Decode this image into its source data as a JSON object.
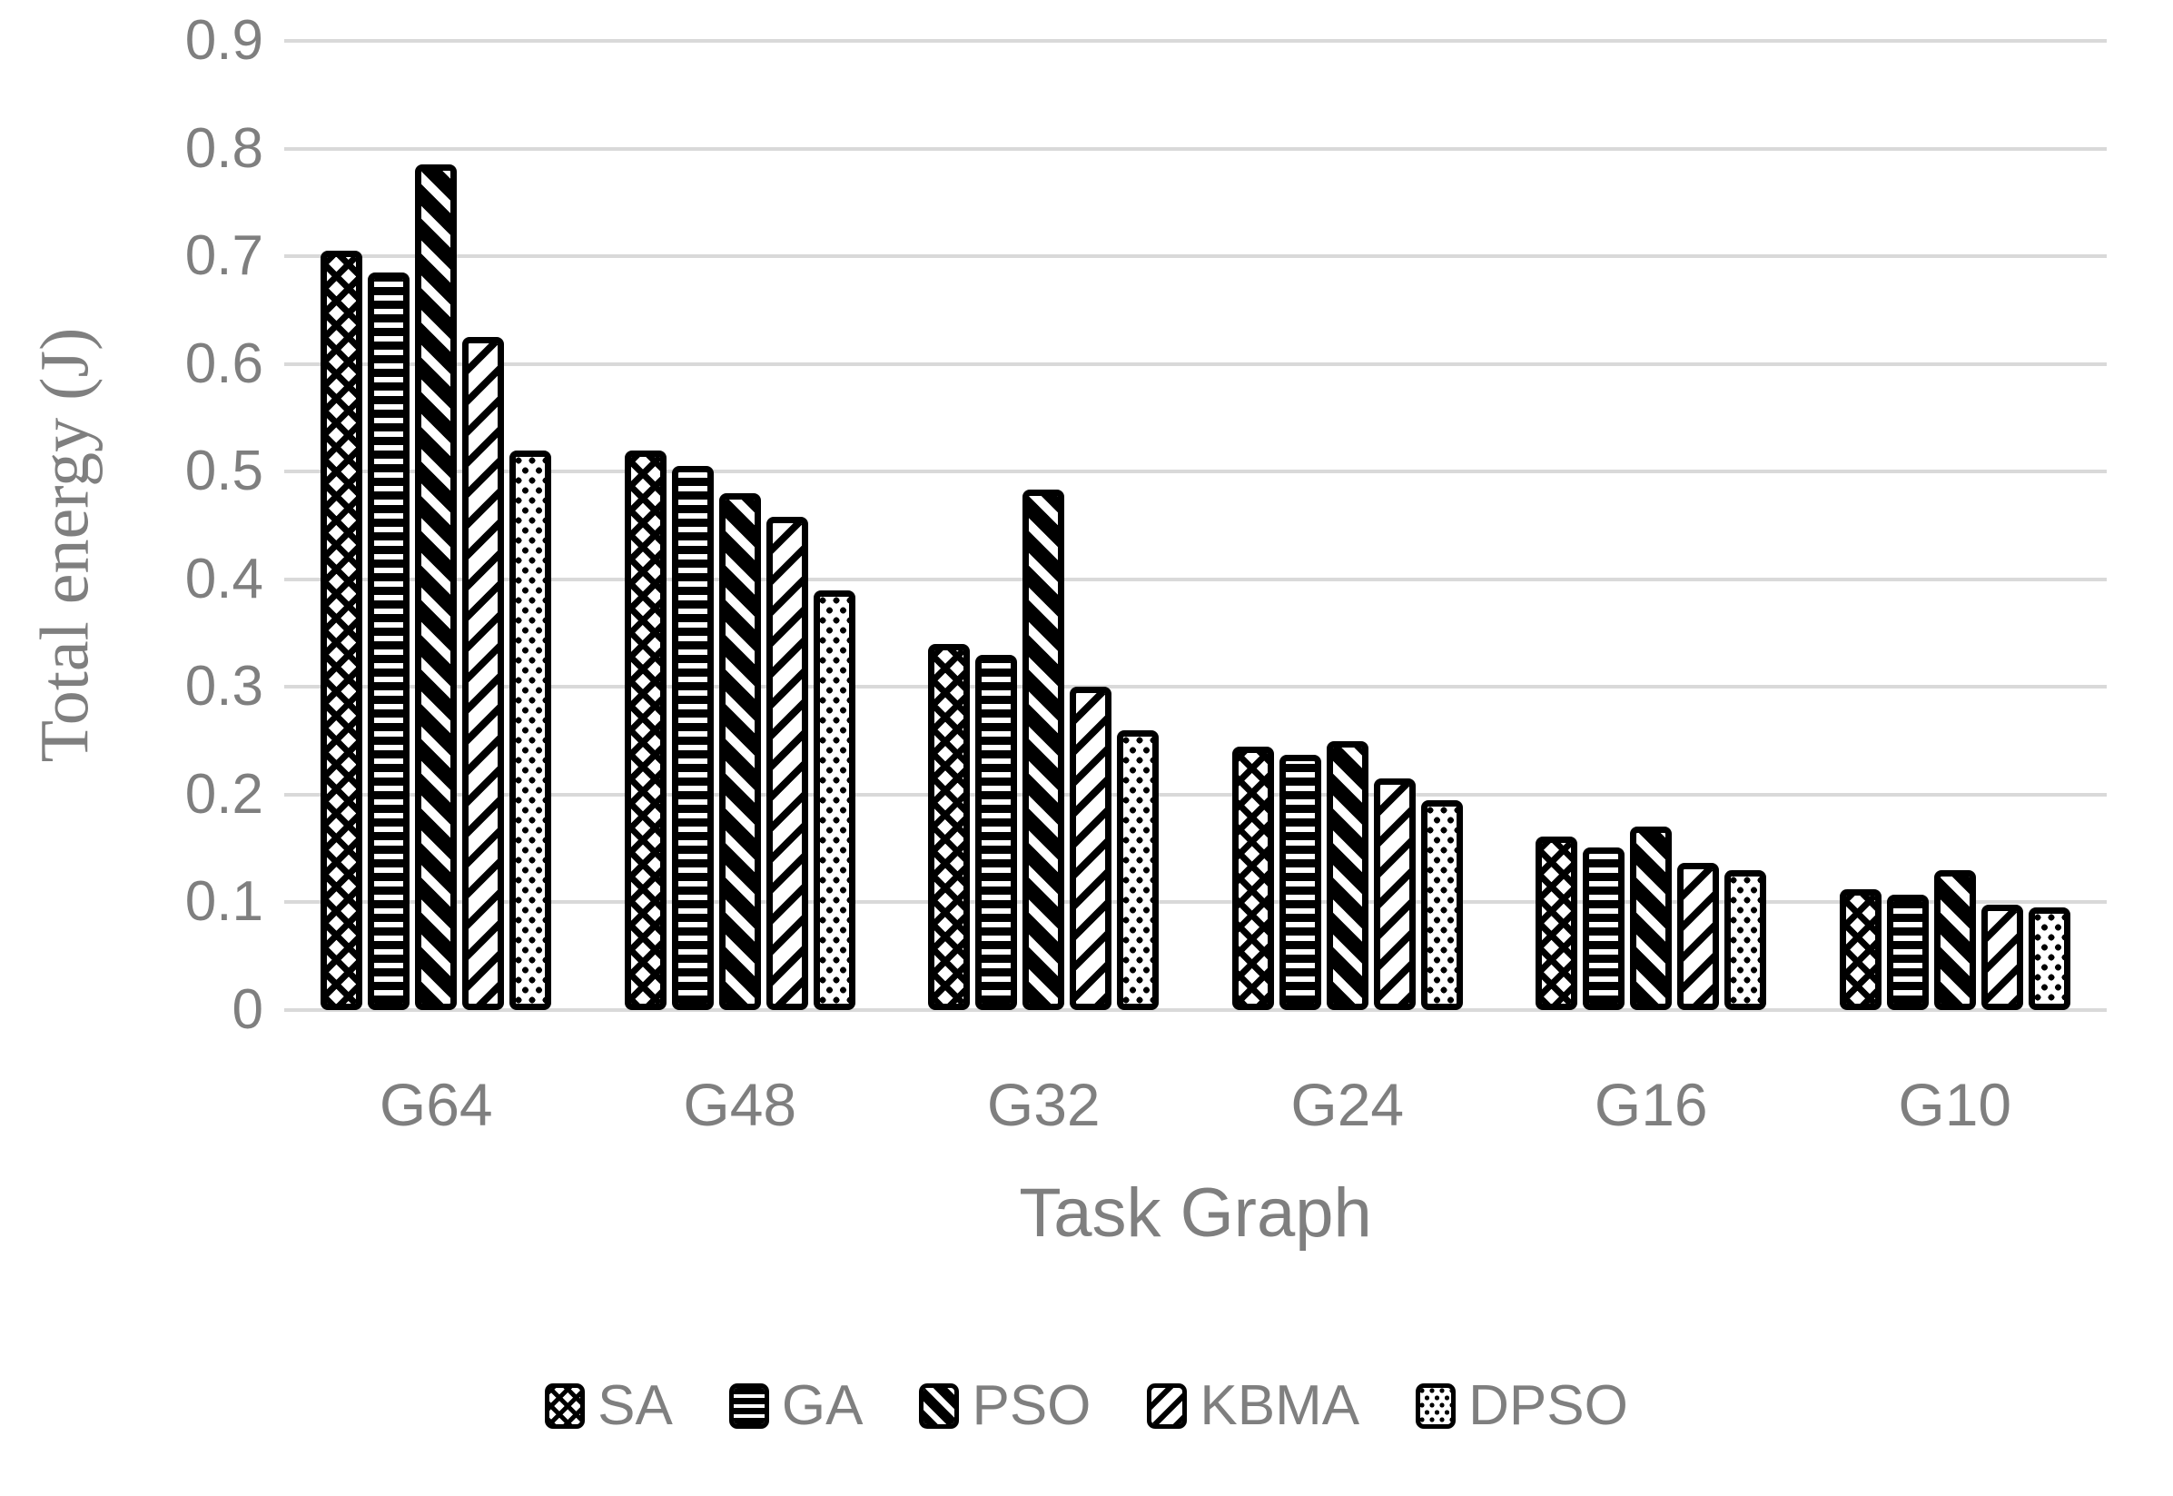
{
  "chart_data": {
    "type": "bar",
    "title": "",
    "categories": [
      "G64",
      "G48",
      "G32",
      "G24",
      "G16",
      "G10"
    ],
    "series": [
      {
        "name": "SA",
        "values": [
          0.705,
          0.52,
          0.34,
          0.245,
          0.161,
          0.112
        ]
      },
      {
        "name": "GA",
        "values": [
          0.685,
          0.505,
          0.33,
          0.237,
          0.151,
          0.107
        ]
      },
      {
        "name": "PSO",
        "values": [
          0.785,
          0.48,
          0.483,
          0.25,
          0.17,
          0.13
        ]
      },
      {
        "name": "KBMA",
        "values": [
          0.625,
          0.458,
          0.3,
          0.215,
          0.137,
          0.098
        ]
      },
      {
        "name": "DPSO",
        "values": [
          0.52,
          0.39,
          0.26,
          0.195,
          0.13,
          0.095
        ]
      }
    ],
    "xlabel": "Task Graph",
    "ylabel": "Total energy (J)",
    "ylim": [
      0,
      0.9
    ],
    "ytick_step": 0.1,
    "yticks": [
      "0",
      "0.1",
      "0.2",
      "0.3",
      "0.4",
      "0.5",
      "0.6",
      "0.7",
      "0.8",
      "0.9"
    ],
    "grid": true,
    "legend_position": "bottom",
    "patterns": {
      "SA": "diamond-crosshatch",
      "GA": "horizontal-stripes",
      "PSO": "heavy-down-diagonal-stripes",
      "KBMA": "light-up-diagonal-stripes",
      "DPSO": "dot-grid"
    }
  },
  "colors": {
    "text": "#7f7f7f",
    "gridline": "#d9d9d9",
    "bar_fill": "#000000",
    "background": "#ffffff"
  }
}
